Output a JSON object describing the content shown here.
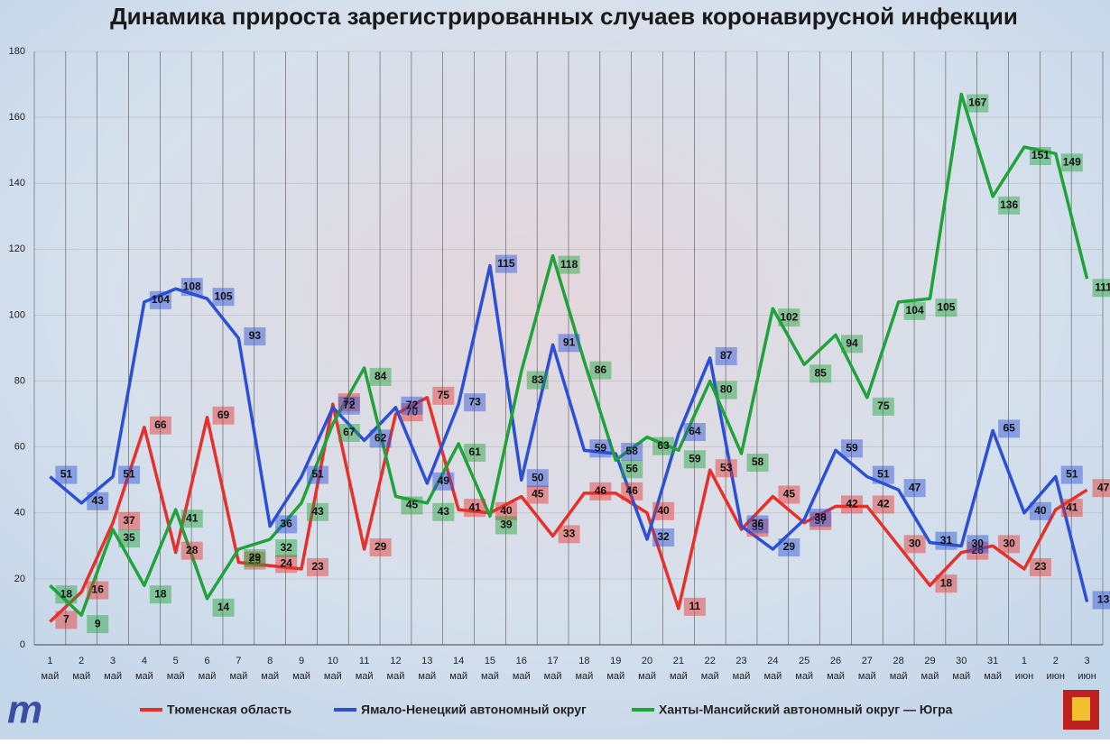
{
  "chart_data": {
    "type": "line",
    "title": "Динамика прироста зарегистрированных случаев коронавирусной инфекции",
    "categories": [
      [
        "1",
        "май"
      ],
      [
        "2",
        "май"
      ],
      [
        "3",
        "май"
      ],
      [
        "4",
        "май"
      ],
      [
        "5",
        "май"
      ],
      [
        "6",
        "май"
      ],
      [
        "7",
        "май"
      ],
      [
        "8",
        "май"
      ],
      [
        "9",
        "май"
      ],
      [
        "10",
        "май"
      ],
      [
        "11",
        "май"
      ],
      [
        "12",
        "май"
      ],
      [
        "13",
        "май"
      ],
      [
        "14",
        "май"
      ],
      [
        "15",
        "май"
      ],
      [
        "16",
        "май"
      ],
      [
        "17",
        "май"
      ],
      [
        "18",
        "май"
      ],
      [
        "19",
        "май"
      ],
      [
        "20",
        "май"
      ],
      [
        "21",
        "май"
      ],
      [
        "22",
        "май"
      ],
      [
        "23",
        "май"
      ],
      [
        "24",
        "май"
      ],
      [
        "25",
        "май"
      ],
      [
        "26",
        "май"
      ],
      [
        "27",
        "май"
      ],
      [
        "28",
        "май"
      ],
      [
        "29",
        "май"
      ],
      [
        "30",
        "май"
      ],
      [
        "31",
        "май"
      ],
      [
        "1",
        "июн"
      ],
      [
        "2",
        "июн"
      ],
      [
        "3",
        "июн"
      ]
    ],
    "series": [
      {
        "name": "Тюменская область",
        "color": "#e8302b",
        "values": [
          7,
          16,
          37,
          66,
          28,
          69,
          25,
          24,
          23,
          73,
          29,
          70,
          75,
          41,
          40,
          45,
          33,
          46,
          46,
          40,
          11,
          53,
          35,
          45,
          37,
          42,
          42,
          30,
          18,
          28,
          30,
          23,
          41,
          47
        ]
      },
      {
        "name": "Ямало-Ненецкий автономный округ",
        "color": "#2b4fd6",
        "values": [
          51,
          43,
          51,
          104,
          108,
          105,
          93,
          36,
          51,
          72,
          62,
          72,
          49,
          73,
          115,
          50,
          91,
          59,
          58,
          32,
          64,
          87,
          36,
          29,
          38,
          59,
          51,
          47,
          31,
          30,
          65,
          40,
          51,
          13
        ]
      },
      {
        "name": "Ханты-Мансийский автономный округ — Югра",
        "color": "#1fa33a",
        "values": [
          18,
          9,
          35,
          18,
          41,
          14,
          29,
          32,
          43,
          67,
          84,
          45,
          43,
          61,
          39,
          83,
          118,
          86,
          56,
          63,
          59,
          80,
          58,
          102,
          85,
          94,
          75,
          104,
          105,
          167,
          136,
          151,
          149,
          111
        ]
      }
    ],
    "ylim": [
      0,
      180
    ],
    "yticks": [
      0,
      20,
      40,
      60,
      80,
      100,
      120,
      140,
      160,
      180
    ],
    "grid": true
  }
}
